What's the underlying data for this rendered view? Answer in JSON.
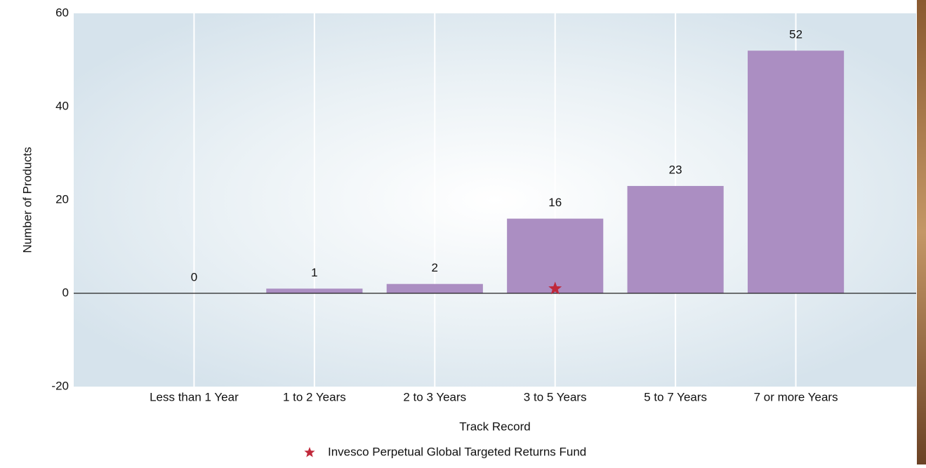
{
  "chart_data": {
    "type": "bar",
    "x_label": "Track Record",
    "y_label": "Number of Products",
    "categories": [
      "Less than 1 Year",
      "1 to 2 Years",
      "2 to 3 Years",
      "3 to 5 Years",
      "5 to 7 Years",
      "7 or more Years"
    ],
    "values": [
      0,
      1,
      2,
      16,
      23,
      52
    ],
    "color": "#ab8ec2",
    "series": [
      {
        "name": "Invesco Perpetual Global Targeted Returns Fund",
        "color": "#c0283a",
        "marker": "star",
        "values": [
          null,
          null,
          null,
          1,
          null,
          null
        ]
      }
    ],
    "ylim": [
      -20,
      60
    ],
    "yticks": [
      -20,
      0,
      20,
      40,
      60
    ],
    "grid": true
  }
}
